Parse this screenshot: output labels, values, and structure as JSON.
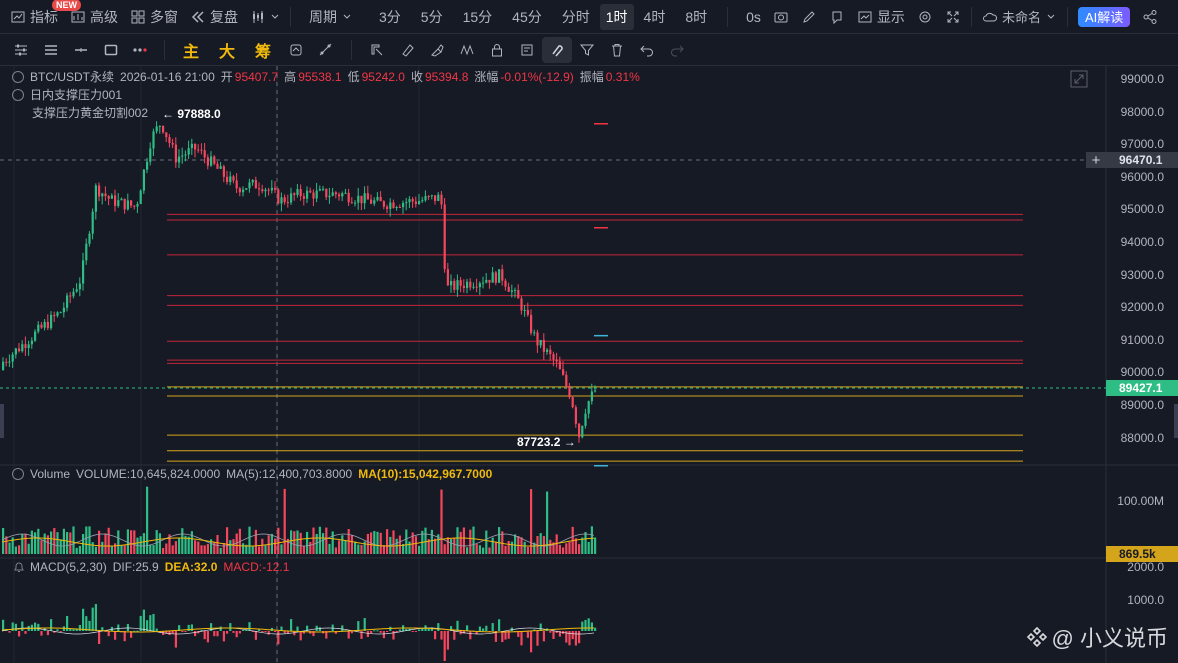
{
  "toolbar": {
    "indicators": "指标",
    "new_badge": "NEW",
    "advanced": "高级",
    "multi_window": "多窗",
    "replay": "复盘",
    "period": "周期",
    "timeframes": [
      "3分",
      "5分",
      "15分",
      "45分",
      "分时",
      "1时",
      "4时",
      "8时"
    ],
    "active_timeframe": "1时",
    "zero_s": "0s",
    "display": "显示",
    "unnamed": "未命名",
    "ai": "AI解读"
  },
  "toolbar2": {
    "main": "主",
    "big": "大",
    "chip": "筹"
  },
  "legend": {
    "symbol": "BTC/USDT永续",
    "datetime": "2026-01-16 21:00",
    "open_k": "开",
    "open_v": "95407.7",
    "high_k": "高",
    "high_v": "95538.1",
    "low_k": "低",
    "low_v": "95242.0",
    "close_k": "收",
    "close_v": "95394.8",
    "change_k": "涨幅",
    "change_v": "-0.01%(-12.9)",
    "amp_k": "振幅",
    "amp_v": "0.31%",
    "ind1": "日内支撑压力001",
    "ind2": "支撑压力黄金切割002"
  },
  "annotations": {
    "high_label": "← 97888.0",
    "low_label": "87723.2 →"
  },
  "price_axis": [
    "99000.0",
    "98000.0",
    "97000.0",
    "96000.0",
    "95000.0",
    "94000.0",
    "93000.0",
    "92000.0",
    "91000.0",
    "90000.0",
    "89000.0",
    "88000.0"
  ],
  "crosshair_price": "96470.1",
  "last_price": "89427.1",
  "volume": {
    "title": "Volume",
    "vol_text": "VOLUME:10,645,824.0000",
    "ma5_text": "MA(5):12,400,703.8000",
    "ma10_text": "MA(10):15,042,967.7000",
    "axis_label": "100.00M",
    "last_tag": "869.5k"
  },
  "macd": {
    "title": "MACD(5,2,30)",
    "dif_text": "DIF:25.9",
    "dea_text": "DEA:32.0",
    "macd_text": "MACD:-12.1",
    "axis": [
      "2000.0",
      "1000.0"
    ]
  },
  "watermark": "@ 小义说币",
  "colors": {
    "up": "#2ebd85",
    "down": "#f6465d",
    "support_red": "#c2253a",
    "support_yellow": "#d4a41a",
    "accent": "#f0b90b"
  }
}
